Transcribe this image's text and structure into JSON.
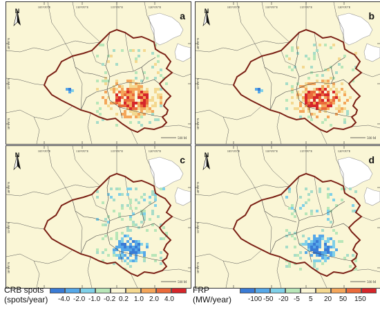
{
  "panels": [
    {
      "letter": "a"
    },
    {
      "letter": "b"
    },
    {
      "letter": "c"
    },
    {
      "letter": "d"
    }
  ],
  "north_label": "N",
  "lon_ticks": [
    "105°0'0\"E",
    "110°0'0\"E",
    "115°0'0\"E",
    "120°0'0\"E"
  ],
  "lat_ticks": [
    "40°0'0\"N",
    "35°0'0\"N",
    "30°0'0\"N"
  ],
  "scale_label": "500 M",
  "colors": {
    "background": "#faf6d6",
    "province_border": "#7a1f14",
    "county_border": "#555555",
    "sea": "#ffffff"
  },
  "legend_crb": {
    "title": "CRB spots",
    "unit": "(spots/year)",
    "ticks": [
      "-4.0",
      "-2.0",
      "-1.0",
      "-0.2",
      "0.2",
      "1.0",
      "2.0",
      "4.0"
    ],
    "colors": [
      "#3a7bd5",
      "#56a8e8",
      "#7fd0e8",
      "#b8e6b8",
      "#faf6d6",
      "#f4d890",
      "#f4a65a",
      "#ea6a3a",
      "#d6262a"
    ]
  },
  "legend_frp": {
    "title": "FRP",
    "unit": "(MW/year)",
    "ticks": [
      "-100",
      "-50",
      "-20",
      "-5",
      "5",
      "20",
      "50",
      "150"
    ],
    "colors": [
      "#3a7bd5",
      "#56a8e8",
      "#7fd0e8",
      "#b8e6b8",
      "#faf6d6",
      "#f4d890",
      "#f4a65a",
      "#ea6a3a",
      "#d6262a"
    ]
  }
}
